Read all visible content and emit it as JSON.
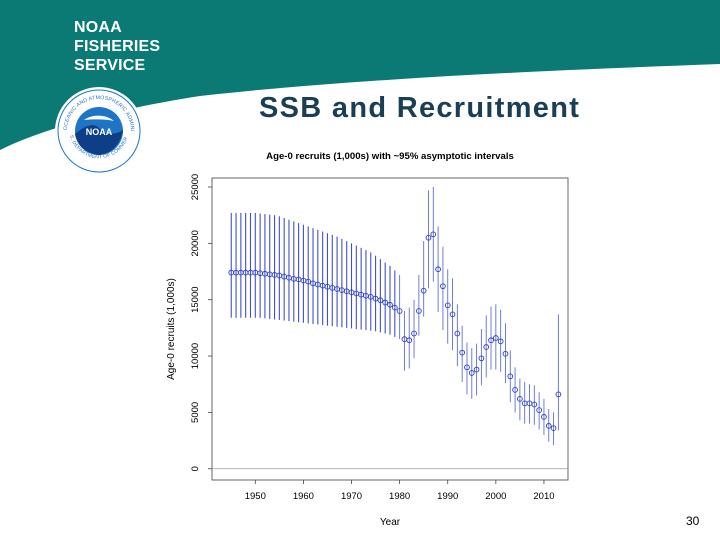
{
  "branding": {
    "lines": [
      "NOAA",
      "FISHERIES",
      "SERVICE"
    ],
    "logo_text": "NOAA",
    "logo_ring_top": "NATIONAL OCEANIC AND ATMOSPHERIC ADMINISTRATION",
    "logo_ring_bottom": "U.S. DEPARTMENT OF COMMERCE",
    "banner_color": "#0b7a75",
    "logo_blue": "#1f75c5"
  },
  "slide_title": "SSB and Recruitment",
  "page_number": "30",
  "chart_data": {
    "type": "scatter",
    "title": "Age-0 recruits (1,000s) with ~95% asymptotic intervals",
    "xlabel": "Year",
    "ylabel": "Age-0 recruits (1,000s)",
    "xlim": [
      1941,
      2015
    ],
    "ylim": [
      -1000,
      25800
    ],
    "x_ticks": [
      1950,
      1960,
      1970,
      1980,
      1990,
      2000,
      2010
    ],
    "y_ticks": [
      0,
      5000,
      10000,
      15000,
      20000,
      25000
    ],
    "reference_line": 0,
    "point_color": "#2b3dc9",
    "series": [
      {
        "name": "Age-0 recruits",
        "x": [
          1945,
          1946,
          1947,
          1948,
          1949,
          1950,
          1951,
          1952,
          1953,
          1954,
          1955,
          1956,
          1957,
          1958,
          1959,
          1960,
          1961,
          1962,
          1963,
          1964,
          1965,
          1966,
          1967,
          1968,
          1969,
          1970,
          1971,
          1972,
          1973,
          1974,
          1975,
          1976,
          1977,
          1978,
          1979,
          1980,
          1981,
          1982,
          1983,
          1984,
          1985,
          1986,
          1987,
          1988,
          1989,
          1990,
          1991,
          1992,
          1993,
          1994,
          1995,
          1996,
          1997,
          1998,
          1999,
          2000,
          2001,
          2002,
          2003,
          2004,
          2005,
          2006,
          2007,
          2008,
          2009,
          2010,
          2011,
          2012,
          2013
        ],
        "y": [
          17400,
          17400,
          17400,
          17400,
          17400,
          17400,
          17350,
          17300,
          17250,
          17200,
          17150,
          17050,
          16950,
          16850,
          16800,
          16700,
          16600,
          16450,
          16350,
          16250,
          16150,
          16050,
          15950,
          15850,
          15750,
          15650,
          15550,
          15450,
          15350,
          15250,
          15100,
          14950,
          14750,
          14550,
          14300,
          14000,
          11500,
          11400,
          12000,
          14000,
          15800,
          20500,
          20800,
          17700,
          16200,
          14500,
          13700,
          12000,
          10300,
          9000,
          8500,
          8800,
          9800,
          10800,
          11400,
          11600,
          11300,
          10200,
          8200,
          7000,
          6200,
          5800,
          5800,
          5700,
          5200,
          4600,
          3800,
          3600,
          6600
        ],
        "low": [
          13400,
          13400,
          13400,
          13400,
          13400,
          13400,
          13400,
          13350,
          13300,
          13250,
          13200,
          13150,
          13100,
          13050,
          13000,
          12950,
          12900,
          12850,
          12800,
          12750,
          12700,
          12650,
          12600,
          12550,
          12500,
          12450,
          12400,
          12350,
          12300,
          12250,
          12200,
          12100,
          12000,
          11900,
          11700,
          11500,
          8700,
          8900,
          9800,
          11800,
          13500,
          16000,
          16600,
          13900,
          12300,
          11100,
          10500,
          9100,
          7700,
          6600,
          6200,
          6500,
          7400,
          8100,
          8800,
          8800,
          8600,
          7600,
          5900,
          5000,
          4300,
          4000,
          4000,
          3900,
          3500,
          3000,
          2400,
          2100,
          3400
        ],
        "high": [
          22700,
          22700,
          22700,
          22700,
          22700,
          22700,
          22650,
          22600,
          22550,
          22500,
          22400,
          22250,
          22100,
          21950,
          21800,
          21650,
          21500,
          21350,
          21200,
          21050,
          20900,
          20750,
          20600,
          20400,
          20200,
          20000,
          19800,
          19600,
          19400,
          19200,
          18900,
          18600,
          18300,
          18000,
          17600,
          17200,
          14000,
          14300,
          15000,
          17200,
          20200,
          24700,
          25000,
          21500,
          19700,
          17700,
          16900,
          14600,
          12700,
          11200,
          10700,
          11100,
          12400,
          13600,
          14400,
          14600,
          14100,
          12900,
          10500,
          9000,
          8000,
          7700,
          7500,
          7400,
          6800,
          6200,
          5300,
          5000,
          13700
        ]
      }
    ]
  }
}
